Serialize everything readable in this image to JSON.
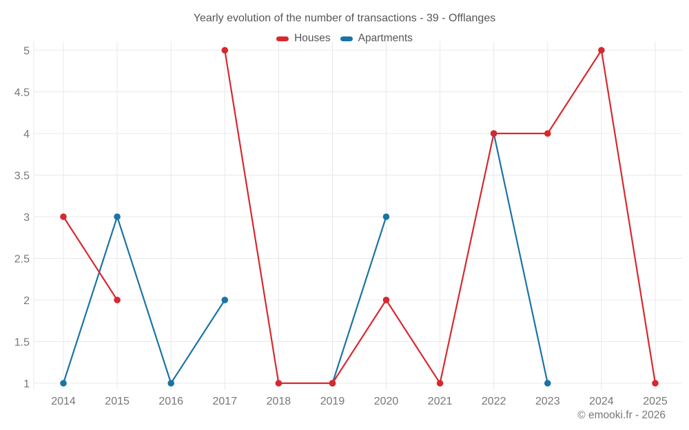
{
  "title": "Yearly evolution of the number of transactions - 39 - Offlanges",
  "footer": "© emooki.fr - 2026",
  "legend": [
    {
      "label": "Houses",
      "color": "#d7282e"
    },
    {
      "label": "Apartments",
      "color": "#1a73a4"
    }
  ],
  "colors": {
    "houses": "#d7282e",
    "apartments": "#1a73a4",
    "grid": "#e8e8e8",
    "tick_text": "#76777b",
    "title_text": "#55565a"
  },
  "chart_data": {
    "type": "line",
    "title": "Yearly evolution of the number of transactions - 39 - Offlanges",
    "x": [
      2014,
      2015,
      2016,
      2017,
      2018,
      2019,
      2020,
      2021,
      2022,
      2023,
      2024,
      2025
    ],
    "series": [
      {
        "name": "Houses",
        "color": "#d7282e",
        "values": [
          3,
          2,
          null,
          5,
          1,
          1,
          2,
          1,
          4,
          4,
          5,
          1
        ]
      },
      {
        "name": "Apartments",
        "color": "#1a73a4",
        "values": [
          1,
          3,
          1,
          2,
          null,
          1,
          3,
          null,
          4,
          1,
          null,
          null
        ]
      }
    ],
    "ylim": [
      1,
      5
    ],
    "yticks": [
      1,
      1.5,
      2,
      2.5,
      3,
      3.5,
      4,
      4.5,
      5
    ],
    "xlabel": "",
    "ylabel": "",
    "grid": true,
    "legend_position": "top",
    "marker": "circle"
  }
}
